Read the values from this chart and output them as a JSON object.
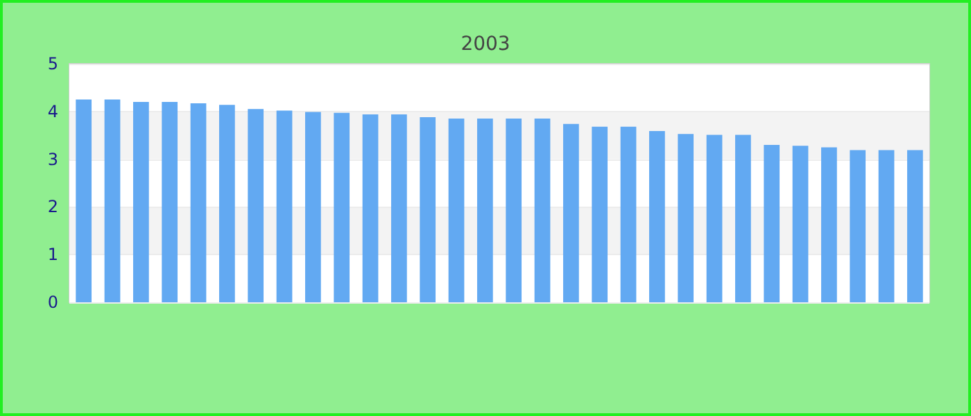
{
  "chart_data": {
    "type": "bar",
    "title": "2003",
    "categories": [
      null,
      null,
      null,
      null,
      null,
      null,
      null,
      null,
      null,
      null,
      null,
      null,
      null,
      null,
      null,
      null,
      null,
      null,
      null,
      null,
      null,
      null,
      null,
      null,
      null,
      null,
      null,
      null,
      null,
      null
    ],
    "values": [
      4.25,
      4.25,
      4.2,
      4.2,
      4.17,
      4.14,
      4.05,
      4.02,
      3.99,
      3.97,
      3.94,
      3.94,
      3.88,
      3.85,
      3.85,
      3.85,
      3.85,
      3.74,
      3.68,
      3.68,
      3.59,
      3.53,
      3.51,
      3.51,
      3.3,
      3.28,
      3.25,
      3.19,
      3.19,
      3.19
    ],
    "color": "#62a9f2",
    "ylim": [
      0,
      5
    ],
    "yticks": [
      0,
      1,
      2,
      3,
      4,
      5
    ],
    "grid": "y"
  }
}
